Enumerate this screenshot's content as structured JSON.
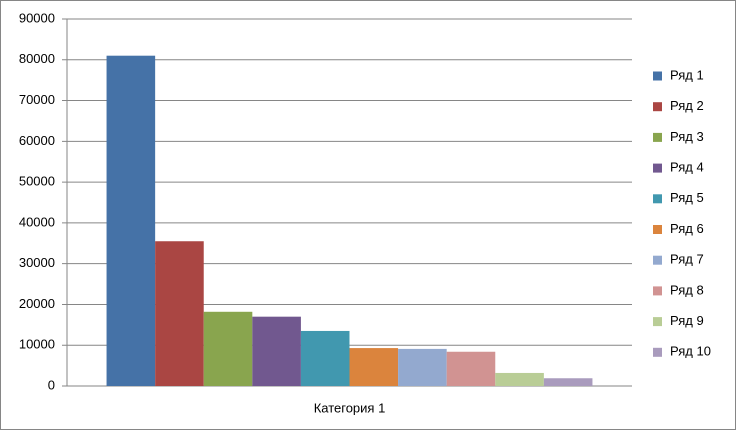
{
  "chart_data": {
    "type": "bar",
    "categories": [
      "Категория 1"
    ],
    "series": [
      {
        "name": "Ряд 1",
        "color": "#4572A7",
        "values": [
          81000
        ]
      },
      {
        "name": "Ряд 2",
        "color": "#AA4643",
        "values": [
          35500
        ]
      },
      {
        "name": "Ряд 3",
        "color": "#89A54E",
        "values": [
          18200
        ]
      },
      {
        "name": "Ряд 4",
        "color": "#71588F",
        "values": [
          17000
        ]
      },
      {
        "name": "Ряд 5",
        "color": "#4198AF",
        "values": [
          13500
        ]
      },
      {
        "name": "Ряд 6",
        "color": "#DB843D",
        "values": [
          9300
        ]
      },
      {
        "name": "Ряд 7",
        "color": "#93A9CF",
        "values": [
          9100
        ]
      },
      {
        "name": "Ряд 8",
        "color": "#D19392",
        "values": [
          8400
        ]
      },
      {
        "name": "Ряд 9",
        "color": "#B9CD96",
        "values": [
          3200
        ]
      },
      {
        "name": "Ряд 10",
        "color": "#A99BBD",
        "values": [
          1900
        ]
      }
    ],
    "ylim": [
      0,
      90000
    ],
    "yticks": [
      0,
      10000,
      20000,
      30000,
      40000,
      50000,
      60000,
      70000,
      80000,
      90000
    ],
    "grid": true,
    "legend": "right"
  }
}
